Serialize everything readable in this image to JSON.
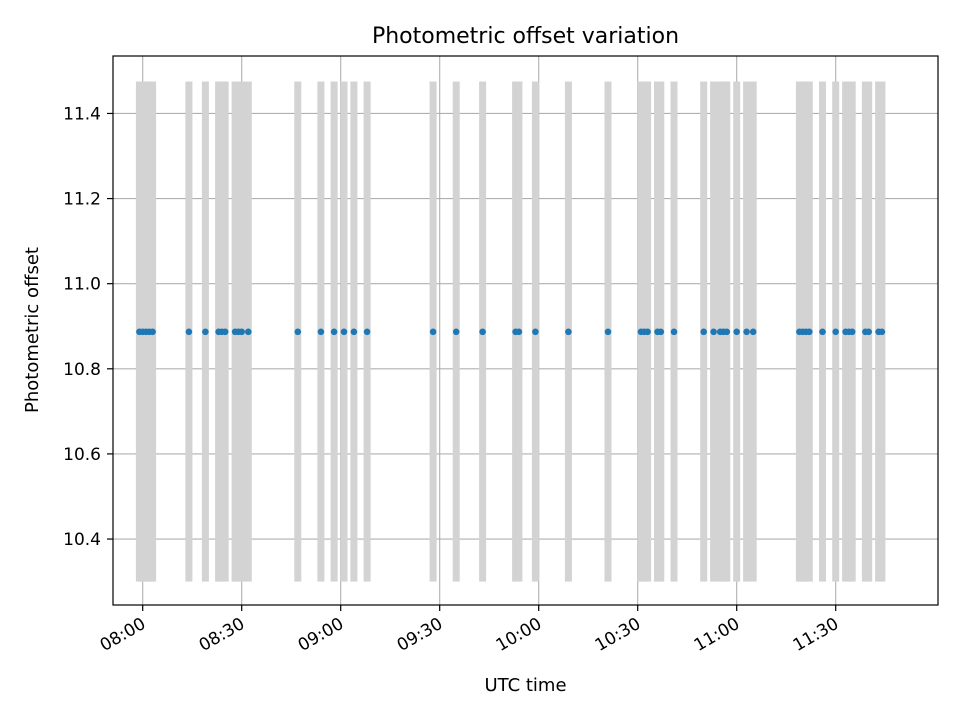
{
  "chart_data": {
    "type": "scatter",
    "title": "Photometric offset variation",
    "xlabel": "UTC time",
    "ylabel": "Photometric offset",
    "x_axis": {
      "kind": "time",
      "range": [
        "07:51",
        "12:01"
      ],
      "ticks": [
        "08:00",
        "08:30",
        "09:00",
        "09:30",
        "10:00",
        "10:30",
        "11:00",
        "11:30"
      ],
      "tick_rotation_deg": 30
    },
    "y_axis": {
      "range": [
        10.245,
        11.535
      ],
      "ticks": [
        10.4,
        10.6,
        10.8,
        11.0,
        11.2,
        11.4
      ],
      "tick_labels": [
        "10.4",
        "10.6",
        "10.8",
        "11.0",
        "11.2",
        "11.4"
      ]
    },
    "grid": true,
    "bands": {
      "color": "#d3d3d3",
      "y_range": [
        10.3,
        11.475
      ],
      "times": [
        "07:59",
        "08:00",
        "08:01",
        "08:02",
        "08:03",
        "08:14",
        "08:19",
        "08:23",
        "08:24",
        "08:25",
        "08:28",
        "08:29",
        "08:30",
        "08:32",
        "08:47",
        "08:54",
        "08:58",
        "09:01",
        "09:04",
        "09:08",
        "09:28",
        "09:35",
        "09:43",
        "09:53",
        "09:54",
        "09:59",
        "10:09",
        "10:21",
        "10:31",
        "10:32",
        "10:33",
        "10:36",
        "10:37",
        "10:41",
        "10:50",
        "10:53",
        "10:55",
        "10:56",
        "10:57",
        "11:00",
        "11:03",
        "11:05",
        "11:19",
        "11:20",
        "11:21",
        "11:22",
        "11:26",
        "11:30",
        "11:33",
        "11:34",
        "11:35",
        "11:39",
        "11:40",
        "11:43",
        "11:44"
      ]
    },
    "series": [
      {
        "color": "#1f77b4",
        "x": [
          "07:59",
          "08:00",
          "08:01",
          "08:02",
          "08:03",
          "08:14",
          "08:19",
          "08:23",
          "08:24",
          "08:25",
          "08:28",
          "08:29",
          "08:30",
          "08:32",
          "08:47",
          "08:54",
          "08:58",
          "09:01",
          "09:04",
          "09:08",
          "09:28",
          "09:35",
          "09:43",
          "09:53",
          "09:54",
          "09:59",
          "10:09",
          "10:21",
          "10:31",
          "10:32",
          "10:33",
          "10:36",
          "10:37",
          "10:41",
          "10:50",
          "10:53",
          "10:55",
          "10:56",
          "10:57",
          "11:00",
          "11:03",
          "11:05",
          "11:19",
          "11:20",
          "11:21",
          "11:22",
          "11:26",
          "11:30",
          "11:33",
          "11:34",
          "11:35",
          "11:39",
          "11:40",
          "11:43",
          "11:44"
        ],
        "y": [
          10.887,
          10.887,
          10.887,
          10.887,
          10.887,
          10.887,
          10.887,
          10.887,
          10.887,
          10.887,
          10.887,
          10.887,
          10.887,
          10.887,
          10.887,
          10.887,
          10.887,
          10.887,
          10.887,
          10.887,
          10.887,
          10.887,
          10.887,
          10.887,
          10.887,
          10.887,
          10.887,
          10.887,
          10.887,
          10.887,
          10.887,
          10.887,
          10.887,
          10.887,
          10.887,
          10.887,
          10.887,
          10.887,
          10.887,
          10.887,
          10.887,
          10.887,
          10.887,
          10.887,
          10.887,
          10.887,
          10.887,
          10.887,
          10.887,
          10.887,
          10.887,
          10.887,
          10.887,
          10.887,
          10.887
        ]
      }
    ]
  }
}
